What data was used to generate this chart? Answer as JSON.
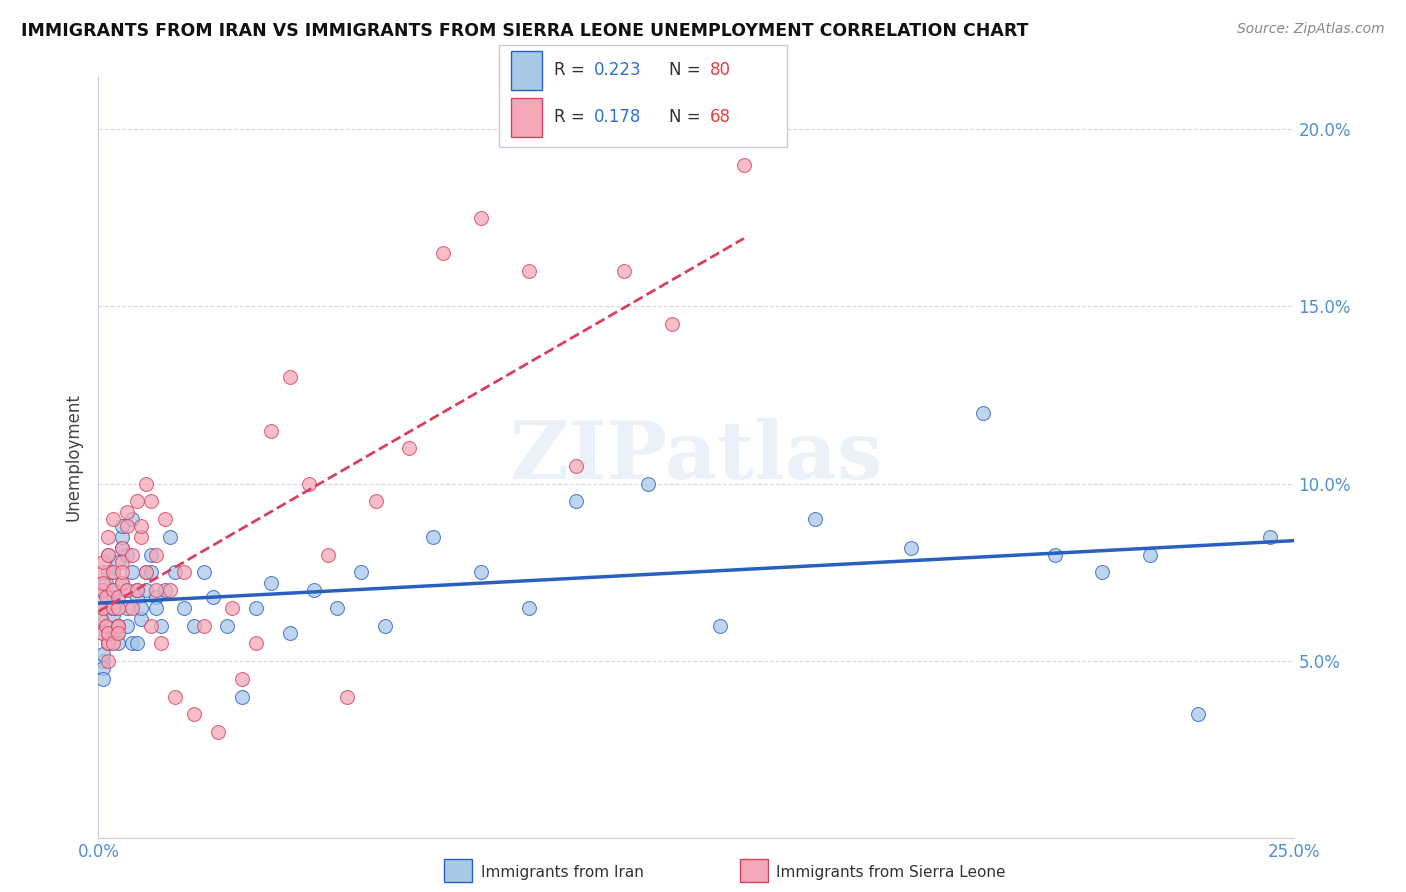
{
  "title": "IMMIGRANTS FROM IRAN VS IMMIGRANTS FROM SIERRA LEONE UNEMPLOYMENT CORRELATION CHART",
  "source": "Source: ZipAtlas.com",
  "ylabel": "Unemployment",
  "xlim": [
    0.0,
    0.25
  ],
  "ylim": [
    0.0,
    0.215
  ],
  "color_iran": "#a8c8e8",
  "color_sl": "#f4a8b8",
  "color_iran_line": "#2860c0",
  "color_sl_line": "#d84060",
  "watermark_text": "ZIPatlas",
  "legend_iran_r": "0.223",
  "legend_iran_n": "80",
  "legend_sl_r": "0.178",
  "legend_sl_n": "68",
  "iran_x": [
    0.0005,
    0.001,
    0.001,
    0.0015,
    0.002,
    0.0005,
    0.001,
    0.002,
    0.0015,
    0.001,
    0.002,
    0.001,
    0.003,
    0.002,
    0.003,
    0.002,
    0.001,
    0.003,
    0.004,
    0.003,
    0.002,
    0.004,
    0.003,
    0.005,
    0.004,
    0.003,
    0.005,
    0.004,
    0.006,
    0.005,
    0.004,
    0.006,
    0.005,
    0.007,
    0.006,
    0.008,
    0.007,
    0.006,
    0.009,
    0.008,
    0.007,
    0.01,
    0.009,
    0.008,
    0.011,
    0.01,
    0.012,
    0.011,
    0.013,
    0.012,
    0.014,
    0.015,
    0.016,
    0.018,
    0.02,
    0.022,
    0.024,
    0.027,
    0.03,
    0.033,
    0.036,
    0.04,
    0.045,
    0.05,
    0.055,
    0.06,
    0.07,
    0.08,
    0.09,
    0.1,
    0.115,
    0.13,
    0.15,
    0.17,
    0.185,
    0.2,
    0.21,
    0.22,
    0.23,
    0.245
  ],
  "iran_y": [
    0.062,
    0.058,
    0.065,
    0.06,
    0.055,
    0.07,
    0.05,
    0.068,
    0.072,
    0.048,
    0.075,
    0.045,
    0.063,
    0.058,
    0.07,
    0.08,
    0.052,
    0.065,
    0.06,
    0.075,
    0.055,
    0.078,
    0.068,
    0.072,
    0.058,
    0.065,
    0.082,
    0.06,
    0.07,
    0.085,
    0.055,
    0.065,
    0.088,
    0.075,
    0.06,
    0.068,
    0.055,
    0.08,
    0.062,
    0.07,
    0.09,
    0.075,
    0.065,
    0.055,
    0.08,
    0.07,
    0.068,
    0.075,
    0.06,
    0.065,
    0.07,
    0.085,
    0.075,
    0.065,
    0.06,
    0.075,
    0.068,
    0.06,
    0.04,
    0.065,
    0.072,
    0.058,
    0.07,
    0.065,
    0.075,
    0.06,
    0.085,
    0.075,
    0.065,
    0.095,
    0.1,
    0.06,
    0.09,
    0.082,
    0.12,
    0.08,
    0.075,
    0.08,
    0.035,
    0.085
  ],
  "sl_x": [
    0.0005,
    0.001,
    0.0008,
    0.001,
    0.0015,
    0.001,
    0.002,
    0.0015,
    0.001,
    0.002,
    0.001,
    0.003,
    0.002,
    0.003,
    0.002,
    0.004,
    0.003,
    0.002,
    0.004,
    0.003,
    0.005,
    0.004,
    0.003,
    0.005,
    0.004,
    0.006,
    0.005,
    0.004,
    0.006,
    0.005,
    0.007,
    0.006,
    0.008,
    0.007,
    0.009,
    0.008,
    0.01,
    0.009,
    0.011,
    0.01,
    0.012,
    0.011,
    0.013,
    0.012,
    0.014,
    0.015,
    0.016,
    0.018,
    0.02,
    0.022,
    0.025,
    0.028,
    0.03,
    0.033,
    0.036,
    0.04,
    0.044,
    0.048,
    0.052,
    0.058,
    0.065,
    0.072,
    0.08,
    0.09,
    0.1,
    0.11,
    0.12,
    0.135
  ],
  "sl_y": [
    0.062,
    0.065,
    0.058,
    0.07,
    0.06,
    0.075,
    0.055,
    0.068,
    0.072,
    0.05,
    0.078,
    0.065,
    0.058,
    0.075,
    0.08,
    0.06,
    0.07,
    0.085,
    0.068,
    0.055,
    0.072,
    0.06,
    0.09,
    0.078,
    0.065,
    0.07,
    0.082,
    0.058,
    0.088,
    0.075,
    0.065,
    0.092,
    0.07,
    0.08,
    0.085,
    0.095,
    0.075,
    0.088,
    0.06,
    0.1,
    0.07,
    0.095,
    0.055,
    0.08,
    0.09,
    0.07,
    0.04,
    0.075,
    0.035,
    0.06,
    0.03,
    0.065,
    0.045,
    0.055,
    0.115,
    0.13,
    0.1,
    0.08,
    0.04,
    0.095,
    0.11,
    0.165,
    0.175,
    0.16,
    0.105,
    0.16,
    0.145,
    0.19
  ]
}
